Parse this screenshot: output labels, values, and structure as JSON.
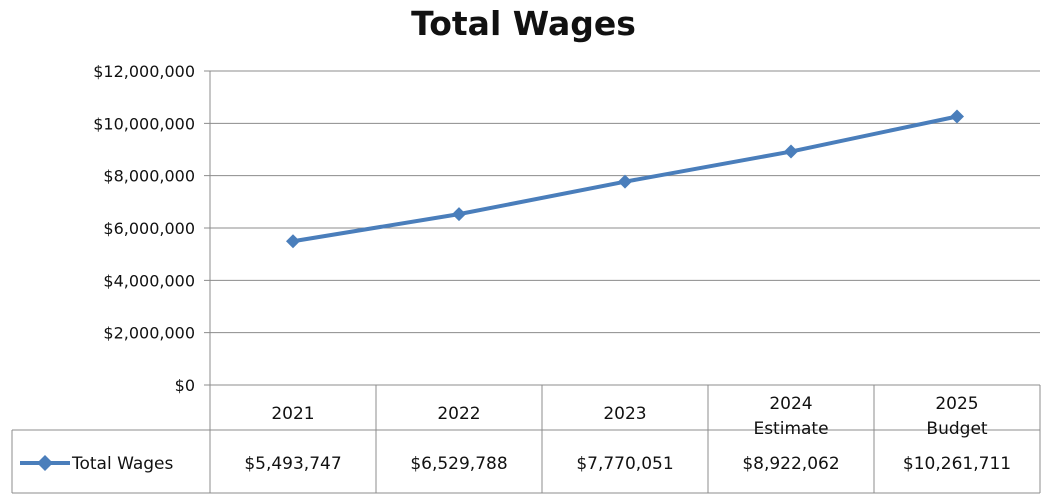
{
  "chart_data": {
    "type": "line",
    "title": "Total Wages",
    "categories": [
      "2021",
      "2022",
      "2023",
      "2024\nEstimate",
      "2025\nBudget"
    ],
    "series": [
      {
        "name": "Total Wages",
        "values": [
          5493747,
          6529788,
          7770051,
          8922062,
          10261711
        ],
        "value_labels": [
          "$5,493,747",
          "$6,529,788",
          "$7,770,051",
          "$8,922,062",
          "$10,261,711"
        ],
        "color": "#4a7ebb"
      }
    ],
    "ylim": [
      0,
      12000000
    ],
    "ytick_labels": [
      "$0",
      "$2,000,000",
      "$4,000,000",
      "$6,000,000",
      "$8,000,000",
      "$10,000,000",
      "$12,000,000"
    ],
    "grid": true,
    "legend": "data-table",
    "marker": "diamond"
  }
}
